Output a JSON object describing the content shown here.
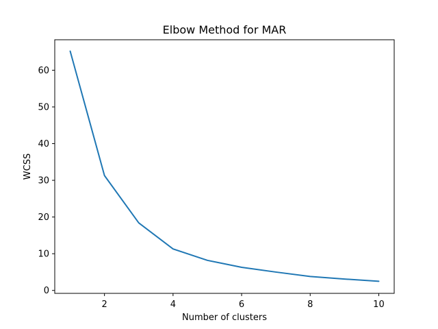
{
  "chart_data": {
    "type": "line",
    "title": "Elbow Method for MAR",
    "xlabel": "Number of clusters",
    "ylabel": "WCSS",
    "xlim": [
      0.55,
      10.45
    ],
    "ylim": [
      -0.8,
      68.3
    ],
    "xticks": [
      2,
      4,
      6,
      8,
      10
    ],
    "yticks": [
      0,
      10,
      20,
      30,
      40,
      50,
      60
    ],
    "grid": false,
    "series": [
      {
        "color": "#1f77b4",
        "x": [
          1,
          2,
          3,
          4,
          5,
          6,
          7,
          8,
          9,
          10
        ],
        "values": [
          65.2,
          31.3,
          18.4,
          11.3,
          8.2,
          6.3,
          5.0,
          3.8,
          3.1,
          2.5
        ]
      }
    ]
  }
}
